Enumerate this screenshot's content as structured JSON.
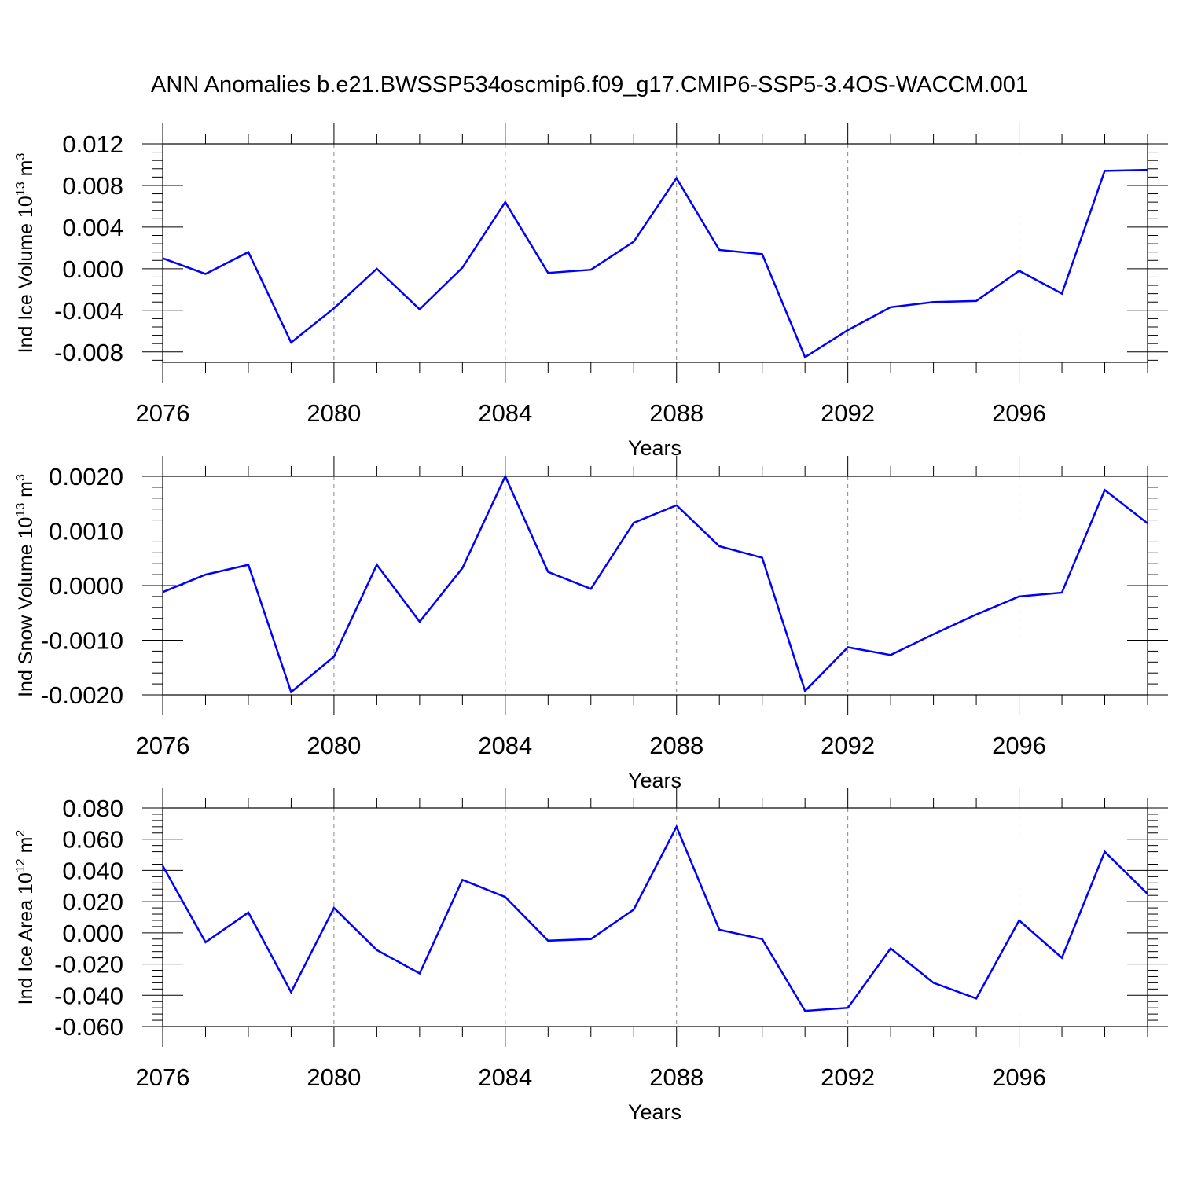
{
  "title": "ANN Anomalies b.e21.BWSSP534oscmip6.f09_g17.CMIP6-SSP5-3.4OS-WACCM.001",
  "line_color": "#0000ff",
  "chart_data": [
    {
      "type": "line",
      "ylabel": "Ind Ice Volume 10",
      "ylabel_exp": "13",
      "ylabel_unit": " m",
      "ylabel_unit_exp": "3",
      "xlabel": "Years",
      "xlim": [
        2076,
        2099
      ],
      "ylim": [
        -0.009,
        0.012
      ],
      "yticks": [
        0.012,
        0.008,
        0.004,
        0.0,
        -0.004,
        -0.008
      ],
      "ytick_labels": [
        "0.012",
        "0.008",
        "0.004",
        "0.000",
        "-0.004",
        "-0.008"
      ],
      "xticks": [
        2076,
        2080,
        2084,
        2088,
        2092,
        2096
      ],
      "xtick_labels": [
        "2076",
        "2080",
        "2084",
        "2088",
        "2092",
        "2096"
      ],
      "x": [
        2076,
        2077,
        2078,
        2079,
        2080,
        2081,
        2082,
        2083,
        2084,
        2085,
        2086,
        2087,
        2088,
        2089,
        2090,
        2091,
        2092,
        2093,
        2094,
        2095,
        2096,
        2097,
        2098,
        2099
      ],
      "y": [
        0.001,
        -0.0005,
        0.0016,
        -0.0071,
        -0.0038,
        0.0,
        -0.0039,
        0.0001,
        0.0064,
        -0.0004,
        -0.0001,
        0.0026,
        0.0087,
        0.0018,
        0.0014,
        -0.0085,
        -0.0059,
        -0.0037,
        -0.0032,
        -0.0031,
        -0.0002,
        -0.0024,
        0.0094,
        0.0095
      ]
    },
    {
      "type": "line",
      "ylabel": "Ind Snow Volume 10",
      "ylabel_exp": "13",
      "ylabel_unit": " m",
      "ylabel_unit_exp": "3",
      "xlabel": "Years",
      "xlim": [
        2076,
        2099
      ],
      "ylim": [
        -0.002,
        0.002
      ],
      "yticks": [
        0.002,
        0.001,
        0.0,
        -0.001,
        -0.002
      ],
      "ytick_labels": [
        "0.0020",
        "0.0010",
        "0.0000",
        "-0.0010",
        "-0.0020"
      ],
      "xticks": [
        2076,
        2080,
        2084,
        2088,
        2092,
        2096
      ],
      "xtick_labels": [
        "2076",
        "2080",
        "2084",
        "2088",
        "2092",
        "2096"
      ],
      "x": [
        2076,
        2077,
        2078,
        2079,
        2080,
        2081,
        2082,
        2083,
        2084,
        2085,
        2086,
        2087,
        2088,
        2089,
        2090,
        2091,
        2092,
        2093,
        2094,
        2095,
        2096,
        2097,
        2098,
        2099
      ],
      "y": [
        -0.00012,
        0.0002,
        0.00038,
        -0.00195,
        -0.0013,
        0.00038,
        -0.00066,
        0.00032,
        0.002,
        0.00025,
        -6e-05,
        0.00115,
        0.00147,
        0.00072,
        0.00051,
        -0.00193,
        -0.00113,
        -0.00127,
        -0.00089,
        -0.00053,
        -0.0002,
        -0.00013,
        0.00175,
        0.00114
      ]
    },
    {
      "type": "line",
      "ylabel": "Ind Ice Area 10",
      "ylabel_exp": "12",
      "ylabel_unit": " m",
      "ylabel_unit_exp": "2",
      "xlabel": "Years",
      "xlim": [
        2076,
        2099
      ],
      "ylim": [
        -0.06,
        0.08
      ],
      "yticks": [
        0.08,
        0.06,
        0.04,
        0.02,
        0.0,
        -0.02,
        -0.04,
        -0.06
      ],
      "ytick_labels": [
        "0.080",
        "0.060",
        "0.040",
        "0.020",
        "0.000",
        "-0.020",
        "-0.040",
        "-0.060"
      ],
      "xticks": [
        2076,
        2080,
        2084,
        2088,
        2092,
        2096
      ],
      "xtick_labels": [
        "2076",
        "2080",
        "2084",
        "2088",
        "2092",
        "2096"
      ],
      "x": [
        2076,
        2077,
        2078,
        2079,
        2080,
        2081,
        2082,
        2083,
        2084,
        2085,
        2086,
        2087,
        2088,
        2089,
        2090,
        2091,
        2092,
        2093,
        2094,
        2095,
        2096,
        2097,
        2098,
        2099
      ],
      "y": [
        0.043,
        -0.006,
        0.013,
        -0.038,
        0.016,
        -0.011,
        -0.026,
        0.034,
        0.023,
        -0.005,
        -0.004,
        0.015,
        0.068,
        0.002,
        -0.004,
        -0.05,
        -0.048,
        -0.01,
        -0.032,
        -0.042,
        0.008,
        -0.016,
        0.052,
        0.025
      ]
    }
  ]
}
